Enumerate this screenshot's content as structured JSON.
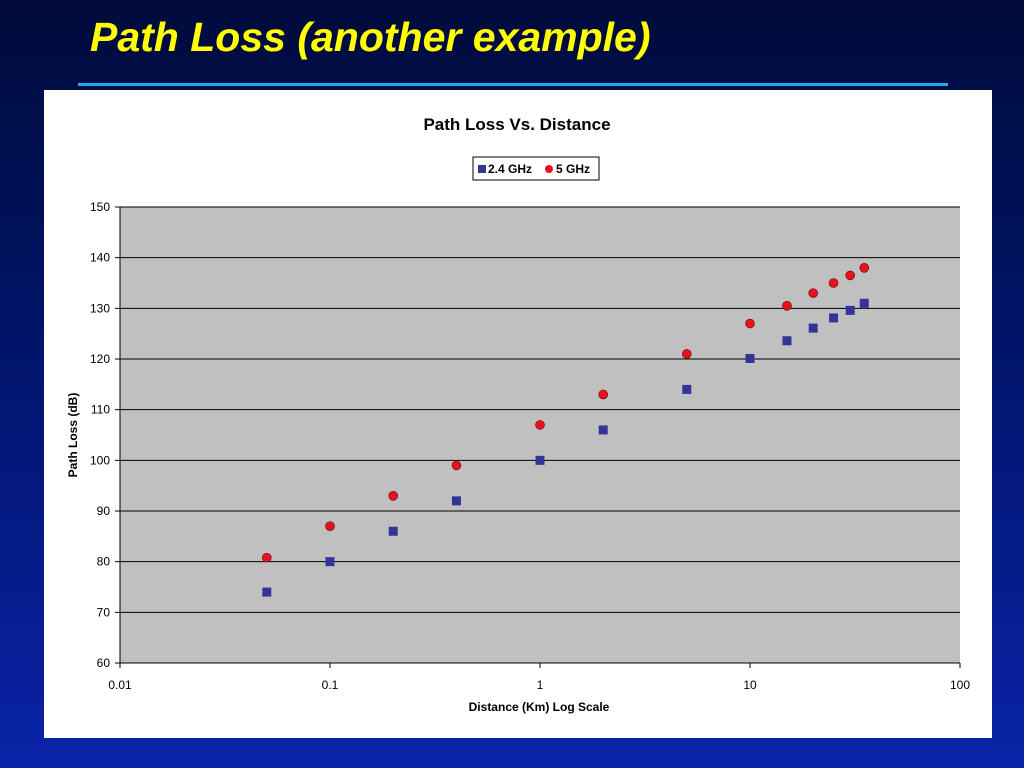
{
  "slide": {
    "title": "Path Loss (another example)"
  },
  "colors": {
    "background_top": "#000b3a",
    "background_bottom": "#0a23a8",
    "title_text": "#ffff00",
    "title_rule": "#2aa8e6",
    "plot_area": "#c0c0c0",
    "series_24": "#333399",
    "series_5": "#e8121e"
  },
  "chart_data": {
    "type": "scatter",
    "title": "Path Loss Vs. Distance",
    "xlabel": "Distance (Km) Log Scale",
    "ylabel": "Path Loss (dB)",
    "xscale": "log",
    "xlim": [
      0.01,
      100
    ],
    "ylim": [
      60,
      150
    ],
    "xticks": [
      "0.01",
      "0.1",
      "1",
      "10",
      "100"
    ],
    "yticks": [
      "60",
      "70",
      "80",
      "90",
      "100",
      "110",
      "120",
      "130",
      "140",
      "150"
    ],
    "grid": "horizontal",
    "legend": "top-center",
    "series": [
      {
        "name": "2.4 GHz",
        "marker": "square",
        "color": "#333399",
        "x": [
          0.05,
          0.1,
          0.2,
          0.4,
          1,
          2,
          5,
          10,
          15,
          20,
          25,
          30,
          35
        ],
        "y": [
          74,
          80,
          86,
          92,
          100,
          106,
          114,
          120.1,
          123.6,
          126.1,
          128.1,
          129.6,
          131
        ]
      },
      {
        "name": "5 GHz",
        "marker": "circle",
        "color": "#e8121e",
        "x": [
          0.05,
          0.1,
          0.2,
          0.4,
          1,
          2,
          5,
          10,
          15,
          20,
          25,
          30,
          35
        ],
        "y": [
          80.8,
          87,
          93,
          99,
          107,
          113,
          121,
          127,
          130.5,
          133,
          135,
          136.5,
          138
        ]
      }
    ]
  }
}
